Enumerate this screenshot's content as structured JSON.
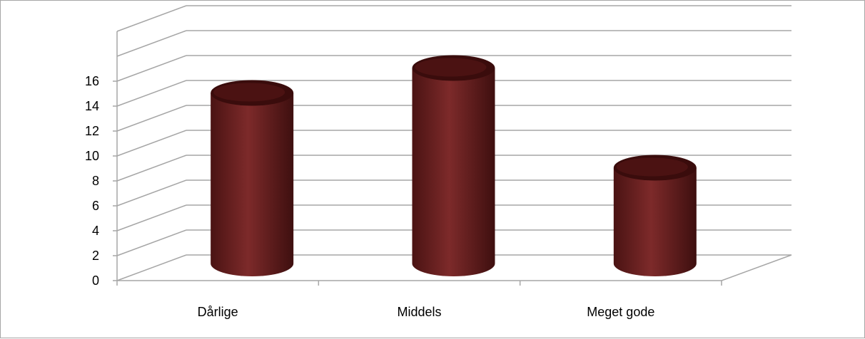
{
  "chart_data": {
    "type": "bar",
    "style": "3d-cylinder",
    "categories": [
      "Dårlige",
      "Middels",
      "Meget gode"
    ],
    "series": [
      {
        "values": [
          13,
          15,
          7
        ],
        "color": "#6e1f1f"
      }
    ],
    "ylim": [
      0,
      20
    ],
    "yticks": [
      0,
      2,
      4,
      6,
      8,
      10,
      12,
      14,
      16
    ],
    "grid": true,
    "legend": "none",
    "colors": {
      "bar": "#6e1f1f",
      "bar_light": "#8a3030",
      "bar_dark": "#3a0c0c",
      "grid": "#a6a6a6"
    }
  }
}
